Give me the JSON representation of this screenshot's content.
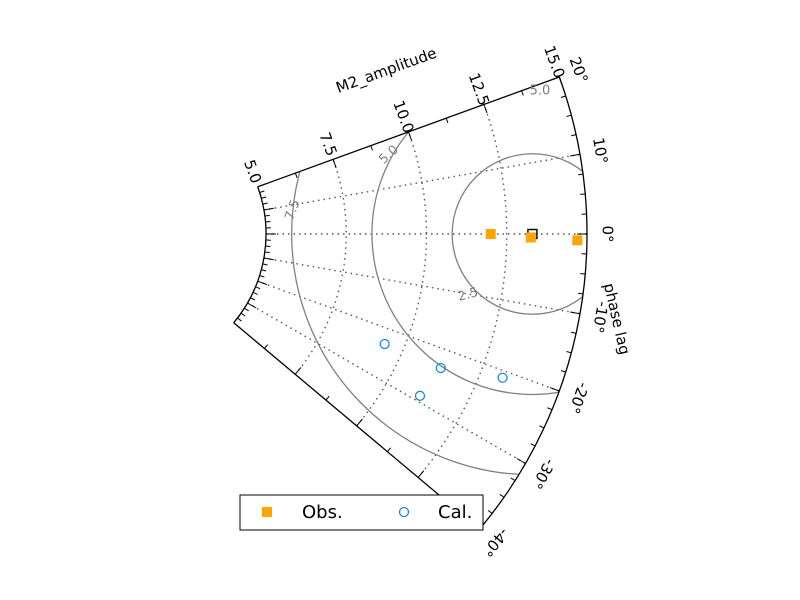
{
  "chart_data": {
    "type": "scatter",
    "projection": "polar-sector (taylor-like)",
    "radial_axis": {
      "label": "M2_amplitude",
      "range": [
        5.0,
        15.0
      ],
      "ticks": [
        "5.0",
        "7.5",
        "10.0",
        "12.5",
        "15.0"
      ]
    },
    "angular_axis": {
      "label": "phase lag",
      "range_deg": [
        -40,
        20
      ],
      "ticks": [
        "20°",
        "10°",
        "0°",
        "-10°",
        "-20°",
        "-30°",
        "-40°"
      ]
    },
    "reference_point": {
      "amplitude": 13.3,
      "phase_deg": 0.0
    },
    "contours": {
      "labels": [
        "2.5",
        "5.0",
        "7.5",
        "5.0"
      ],
      "color": "#808080"
    },
    "series": [
      {
        "name": "Obs.",
        "marker": "filled-square",
        "color": "#FFA500",
        "points": [
          {
            "amplitude": 12.0,
            "phase_deg": 0.0
          },
          {
            "amplitude": 13.25,
            "phase_deg": -0.5
          },
          {
            "amplitude": 14.7,
            "phase_deg": -0.8
          }
        ]
      },
      {
        "name": "Cal.",
        "marker": "hollow-circle",
        "color": "#1E88E5",
        "points": [
          {
            "amplitude": 9.4,
            "phase_deg": -23.2
          },
          {
            "amplitude": 11.3,
            "phase_deg": -23.2
          },
          {
            "amplitude": 11.1,
            "phase_deg": -29.0
          },
          {
            "amplitude": 13.2,
            "phase_deg": -21.0
          }
        ]
      }
    ],
    "grid": true,
    "legend": {
      "placement": "bottom",
      "entries": [
        "Obs.",
        "Cal."
      ]
    }
  }
}
